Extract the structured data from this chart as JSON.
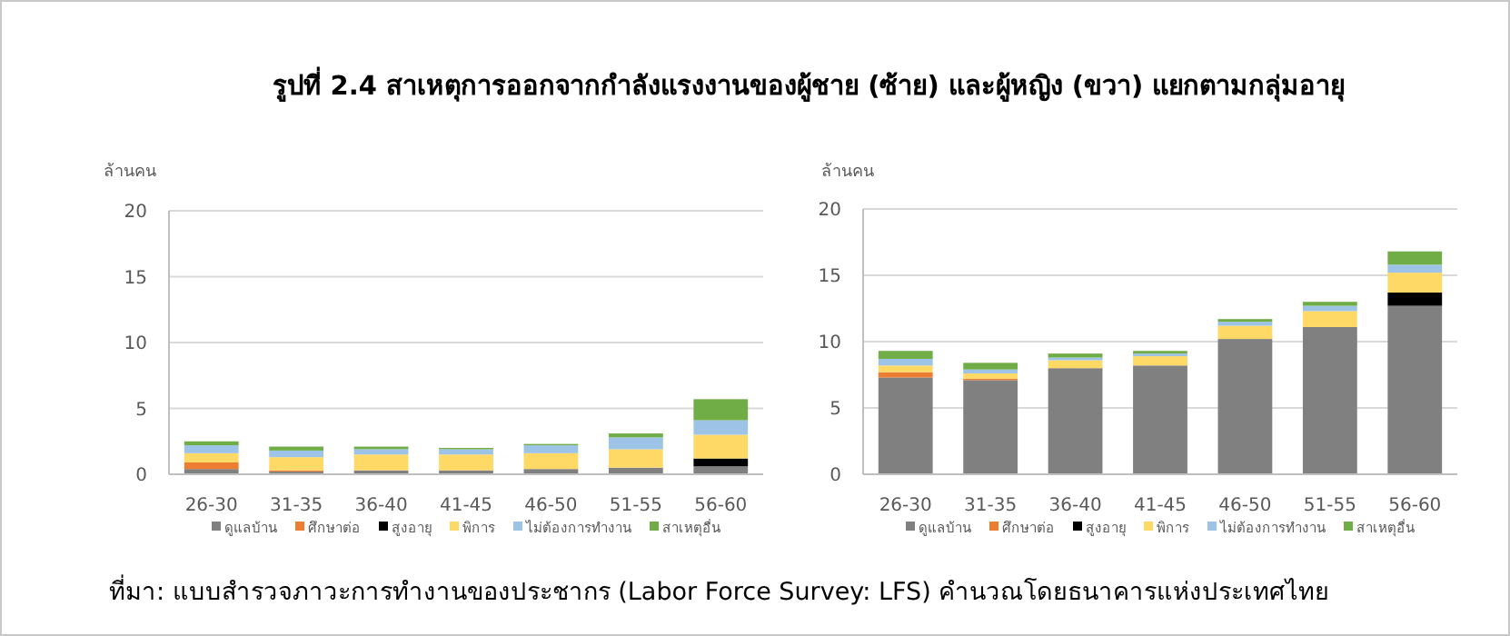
{
  "chart_data": [
    {
      "type": "bar",
      "title": "รูปที่ 2.4 สาเหตุการออกจากกำลังแรงงานของผู้ชาย (ซ้าย) และผู้หญิง (ขวา) แยกตามกลุ่มอายุ",
      "ylabel": "ล้านคน",
      "stacked": true,
      "grid": "y",
      "legend": "bottom",
      "ylim": [
        0,
        20
      ],
      "yticks": [
        0,
        5,
        10,
        15,
        20
      ],
      "categories": [
        "26-30",
        "31-35",
        "36-40",
        "41-45",
        "46-50",
        "51-55",
        "56-60"
      ],
      "series": [
        {
          "name": "ดูแลบ้าน",
          "color": "#808080",
          "values": [
            0.4,
            0.2,
            0.3,
            0.3,
            0.4,
            0.5,
            0.6
          ]
        },
        {
          "name": "ศึกษาต่อ",
          "color": "#ed7d31",
          "values": [
            0.5,
            0.1,
            0,
            0,
            0,
            0,
            0
          ]
        },
        {
          "name": "สูงอายุ",
          "color": "#000000",
          "values": [
            0,
            0,
            0,
            0,
            0,
            0,
            0.6
          ]
        },
        {
          "name": "พิการ",
          "color": "#ffd966",
          "values": [
            0.7,
            1.0,
            1.2,
            1.2,
            1.2,
            1.4,
            1.8
          ]
        },
        {
          "name": "ไม่ต้องการทำงาน",
          "color": "#9dc3e6",
          "values": [
            0.6,
            0.5,
            0.4,
            0.4,
            0.6,
            0.9,
            1.1
          ]
        },
        {
          "name": "สาเหตุอื่น",
          "color": "#70ad47",
          "values": [
            0.3,
            0.3,
            0.2,
            0.1,
            0.1,
            0.3,
            1.6
          ]
        }
      ]
    },
    {
      "type": "bar",
      "ylabel": "ล้านคน",
      "stacked": true,
      "grid": "y",
      "legend": "bottom",
      "ylim": [
        0,
        20
      ],
      "yticks": [
        0,
        5,
        10,
        15,
        20
      ],
      "annotations": [
        "ที่มา: แบบสำรวจภาวะการทำงานของประชากร (Labor Force Survey: LFS) คำนวณโดยธนาคารแห่งประเทศไทย"
      ],
      "categories": [
        "26-30",
        "31-35",
        "36-40",
        "41-45",
        "46-50",
        "51-55",
        "56-60"
      ],
      "series": [
        {
          "name": "ดูแลบ้าน",
          "color": "#808080",
          "values": [
            7.3,
            7.1,
            8.0,
            8.2,
            10.2,
            11.1,
            12.7
          ]
        },
        {
          "name": "ศึกษาต่อ",
          "color": "#ed7d31",
          "values": [
            0.4,
            0.1,
            0,
            0,
            0,
            0,
            0
          ]
        },
        {
          "name": "สูงอายุ",
          "color": "#000000",
          "values": [
            0,
            0,
            0,
            0,
            0,
            0,
            1.0
          ]
        },
        {
          "name": "พิการ",
          "color": "#ffd966",
          "values": [
            0.5,
            0.4,
            0.6,
            0.7,
            1.0,
            1.2,
            1.5
          ]
        },
        {
          "name": "ไม่ต้องการทำงาน",
          "color": "#9dc3e6",
          "values": [
            0.5,
            0.3,
            0.2,
            0.2,
            0.3,
            0.4,
            0.6
          ]
        },
        {
          "name": "สาเหตุอื่น",
          "color": "#70ad47",
          "values": [
            0.6,
            0.5,
            0.3,
            0.2,
            0.2,
            0.3,
            1.0
          ]
        }
      ]
    }
  ]
}
